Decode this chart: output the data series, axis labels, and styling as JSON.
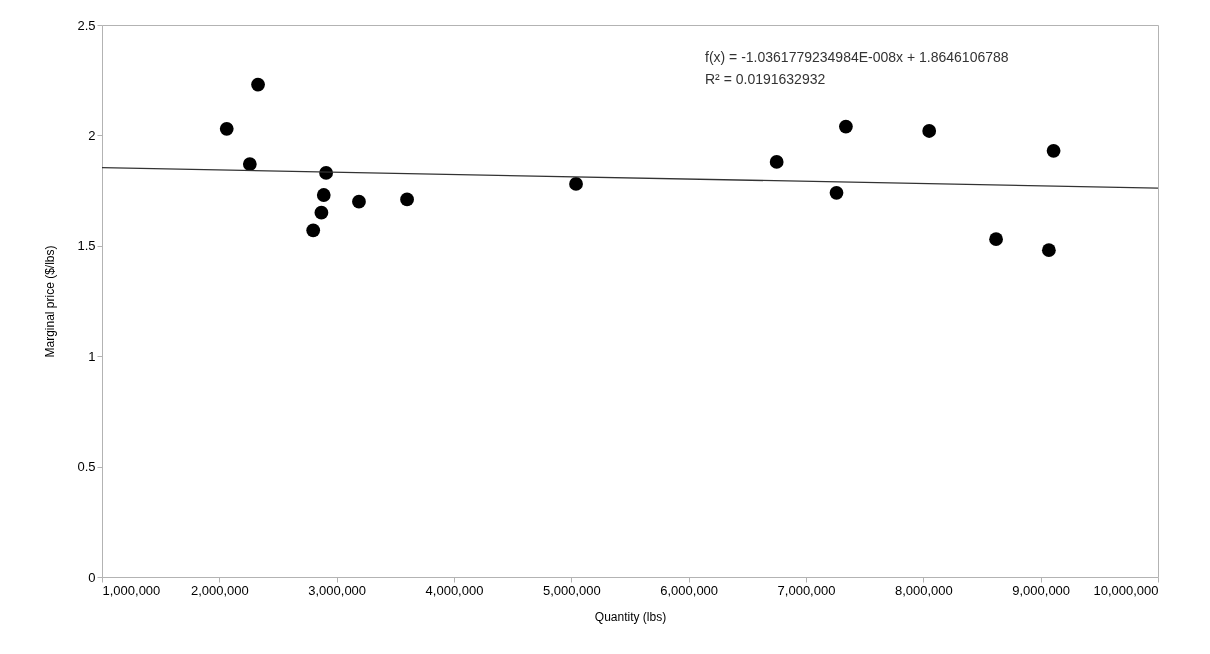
{
  "chart_data": {
    "type": "scatter",
    "xlabel": "Quantity (lbs)",
    "ylabel": "Marginal price ($/lbs)",
    "x": [
      2063000,
      2260000,
      2330000,
      2910000,
      2890000,
      2870000,
      2800000,
      3190000,
      3600000,
      5040000,
      6750000,
      7340000,
      7260000,
      8050000,
      8620000,
      9110000,
      9070000
    ],
    "series": [
      {
        "color": "#000000",
        "marker": "circle",
        "values": [
          2.03,
          1.87,
          2.23,
          1.83,
          1.73,
          1.65,
          1.57,
          1.7,
          1.71,
          1.78,
          1.88,
          2.04,
          1.74,
          2.02,
          1.53,
          1.93,
          1.48
        ]
      },
      {
        "type": "line",
        "color": "#333333",
        "marker": "none",
        "x": [
          1000000,
          10000000
        ],
        "values": [
          1.854,
          1.761
        ]
      }
    ],
    "xlim": [
      1000000,
      10000000
    ],
    "xticks": [
      {
        "value": 1000000,
        "label": "1,000,000"
      },
      {
        "value": 2000000,
        "label": "2,000,000"
      },
      {
        "value": 3000000,
        "label": "3,000,000"
      },
      {
        "value": 4000000,
        "label": "4,000,000"
      },
      {
        "value": 5000000,
        "label": "5,000,000"
      },
      {
        "value": 6000000,
        "label": "6,000,000"
      },
      {
        "value": 7000000,
        "label": "7,000,000"
      },
      {
        "value": 8000000,
        "label": "8,000,000"
      },
      {
        "value": 9000000,
        "label": "9,000,000"
      },
      {
        "value": 10000000,
        "label": "10,000,000"
      }
    ],
    "ylim": [
      0,
      2.5
    ],
    "yticks": [
      0,
      0.5,
      1,
      1.5,
      2,
      2.5
    ],
    "annotations": [
      "f(x) = -1.0361779234984E-008x + 1.8646106788",
      "R² = 0.0191632932"
    ],
    "grid": false
  }
}
